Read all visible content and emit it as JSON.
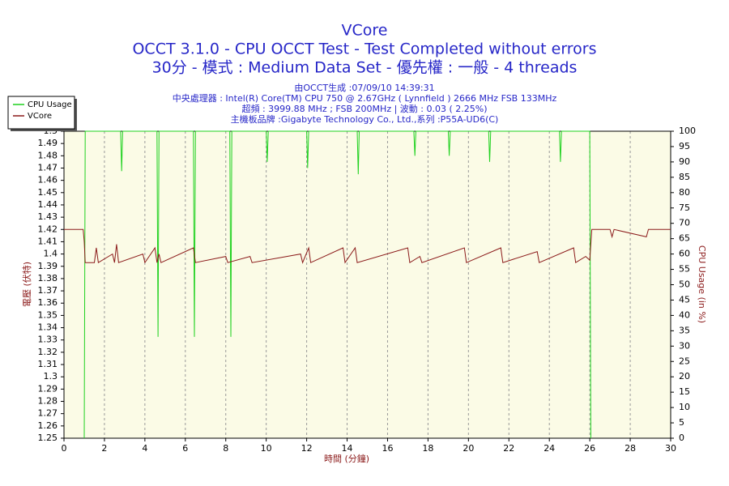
{
  "chart_data": {
    "type": "line",
    "title": "VCore",
    "subtitle": "OCCT 3.1.0 - CPU OCCT Test - Test Completed without errors",
    "subtitle2": "30分 - 模式 : Medium Data Set - 優先權 : 一般 - 4 threads",
    "info": [
      "由OCCT生成 :07/09/10 14:39:31",
      "中央處理器 : Intel(R) Core(TM) CPU 750 @ 2.67GHz ( Lynnfield ) 2666 MHz FSB 133MHz",
      "超頻 : 3999.88 MHz ; FSB 200MHz | 波動 : 0.03 ( 2.25%)",
      "主機板品牌 :Gigabyte Technology Co., Ltd.,系列 :P55A-UD6(C)"
    ],
    "x_label": "時間 (分鐘)",
    "y_label": "電壓 (伏特)",
    "y2_label": "CPU Usage (in %)",
    "xlim": [
      0,
      30
    ],
    "xticks": [
      0,
      2,
      4,
      6,
      8,
      10,
      12,
      14,
      16,
      18,
      20,
      22,
      24,
      26,
      28,
      30
    ],
    "ylim": [
      1.25,
      1.5
    ],
    "yticks": [
      1.25,
      1.26,
      1.27,
      1.28,
      1.29,
      1.3,
      1.31,
      1.32,
      1.33,
      1.34,
      1.35,
      1.36,
      1.37,
      1.38,
      1.39,
      1.4,
      1.41,
      1.42,
      1.43,
      1.44,
      1.45,
      1.46,
      1.47,
      1.48,
      1.49,
      1.5
    ],
    "y2lim": [
      0,
      100
    ],
    "y2ticks": [
      0,
      5,
      10,
      15,
      20,
      25,
      30,
      35,
      40,
      45,
      50,
      55,
      60,
      65,
      70,
      75,
      80,
      85,
      90,
      95,
      100
    ],
    "grid": "x",
    "legend": "top-left",
    "series": [
      {
        "name": "CPU Usage",
        "color": "#1fd11f",
        "axis": "y2",
        "x": [
          1.0,
          1.05,
          2.8,
          2.85,
          2.9,
          4.6,
          4.65,
          4.7,
          6.4,
          6.45,
          6.5,
          8.2,
          8.25,
          8.3,
          10.0,
          10.05,
          10.1,
          12.0,
          12.05,
          12.1,
          14.5,
          14.55,
          14.6,
          17.3,
          17.35,
          17.4,
          19.0,
          19.05,
          19.1,
          21.0,
          21.05,
          21.1,
          24.5,
          24.55,
          24.6,
          26.0,
          26.05
        ],
        "values": [
          0,
          100,
          100,
          87,
          100,
          100,
          33,
          100,
          100,
          33,
          100,
          100,
          33,
          100,
          100,
          90,
          100,
          100,
          88,
          100,
          100,
          86,
          100,
          100,
          92,
          100,
          100,
          92,
          100,
          100,
          90,
          100,
          100,
          90,
          100,
          100,
          0
        ]
      },
      {
        "name": "VCore",
        "color": "#8b1a1a",
        "x": [
          0,
          0.95,
          1.0,
          1.05,
          1.5,
          1.6,
          1.7,
          2.4,
          2.5,
          2.6,
          2.7,
          3.9,
          4.0,
          4.5,
          4.6,
          4.7,
          4.8,
          6.4,
          6.5,
          8.0,
          8.1,
          9.2,
          9.3,
          11.7,
          11.8,
          12.1,
          12.2,
          13.8,
          13.9,
          14.4,
          14.5,
          17.0,
          17.1,
          17.6,
          17.7,
          19.8,
          19.9,
          21.6,
          21.7,
          23.4,
          23.5,
          25.2,
          25.3,
          25.8,
          26.0,
          26.1,
          27.0,
          27.1,
          27.2,
          28.8,
          28.9,
          30
        ],
        "values": [
          1.42,
          1.42,
          1.41,
          1.393,
          1.393,
          1.405,
          1.393,
          1.4,
          1.393,
          1.408,
          1.393,
          1.4,
          1.393,
          1.405,
          1.393,
          1.4,
          1.393,
          1.405,
          1.393,
          1.398,
          1.393,
          1.398,
          1.393,
          1.4,
          1.393,
          1.405,
          1.393,
          1.405,
          1.393,
          1.405,
          1.393,
          1.405,
          1.393,
          1.398,
          1.393,
          1.405,
          1.393,
          1.405,
          1.393,
          1.402,
          1.393,
          1.405,
          1.393,
          1.398,
          1.395,
          1.42,
          1.42,
          1.414,
          1.42,
          1.414,
          1.42,
          1.42
        ]
      }
    ]
  }
}
